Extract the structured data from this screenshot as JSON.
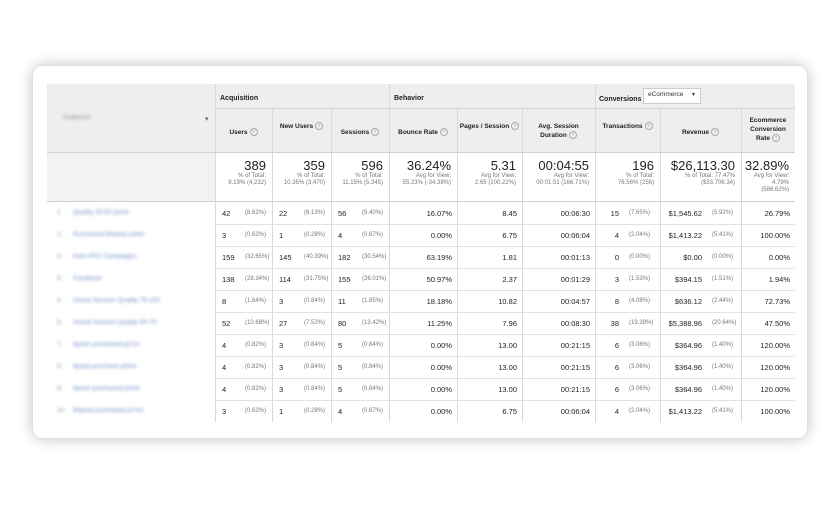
{
  "header": {
    "audience_label": "Audience",
    "groups": {
      "acquisition": "Acquisition",
      "behavior": "Behavior",
      "conversions": "Conversions"
    },
    "conversions_select": "eCommerce",
    "columns": [
      "Users",
      "New Users",
      "Sessions",
      "Bounce Rate",
      "Pages / Session",
      "Avg. Session Duration",
      "Transactions",
      "Revenue",
      "Ecommerce Conversion Rate"
    ]
  },
  "totals": [
    {
      "value": "389",
      "l1": "% of Total:",
      "l2": "9.19% (4,232)"
    },
    {
      "value": "359",
      "l1": "% of Total:",
      "l2": "10.35% (3,470)"
    },
    {
      "value": "596",
      "l1": "% of Total:",
      "l2": "11.15% (5,345)"
    },
    {
      "value": "36.24%",
      "l1": "Avg for View:",
      "l2": "55.23% (-34.38%)"
    },
    {
      "value": "5.31",
      "l1": "Avg for View:",
      "l2": "2.65 (100.22%)"
    },
    {
      "value": "00:04:55",
      "l1": "Avg for View:",
      "l2": "00:01:51 (166.71%)"
    },
    {
      "value": "196",
      "l1": "% of Total:",
      "l2": "76.56% (256)"
    },
    {
      "value": "$26,113.30",
      "l1": "% of Total: 77.47%",
      "l2": "($33,706.34)"
    },
    {
      "value": "32.89%",
      "l1": "Avg for View:",
      "l2": "4.79%",
      "l3": "(586.62%)"
    }
  ],
  "rows": [
    {
      "idx": "1.",
      "name": "Quality 25-50 p3Ad",
      "users": "42",
      "users_p": "(8.62%)",
      "new": "22",
      "new_p": "(6.13%)",
      "sess": "56",
      "sess_p": "(9.40%)",
      "bounce": "16.07%",
      "pps": "8.45",
      "dur": "00:06:30",
      "tx": "15",
      "tx_p": "(7.65%)",
      "rev": "$1,545.62",
      "rev_p": "(5.92%)",
      "conv": "26.79%"
    },
    {
      "idx": "2.",
      "name": "Purchased 60pack p3Ad",
      "users": "3",
      "users_p": "(0.62%)",
      "new": "1",
      "new_p": "(0.28%)",
      "sess": "4",
      "sess_p": "(0.67%)",
      "bounce": "0.00%",
      "pps": "6.75",
      "dur": "00:06:04",
      "tx": "4",
      "tx_p": "(2.04%)",
      "rev": "$1,413.22",
      "rev_p": "(5.41%)",
      "conv": "100.00%"
    },
    {
      "idx": "3.",
      "name": "Keto PPC Campaigns",
      "users": "159",
      "users_p": "(32.65%)",
      "new": "145",
      "new_p": "(40.39%)",
      "sess": "182",
      "sess_p": "(30.54%)",
      "bounce": "63.19%",
      "pps": "1.81",
      "dur": "00:01:13",
      "tx": "0",
      "tx_p": "(0.00%)",
      "rev": "$0.00",
      "rev_p": "(0.00%)",
      "conv": "0.00%"
    },
    {
      "idx": "4.",
      "name": "Facebook",
      "users": "138",
      "users_p": "(28.34%)",
      "new": "114",
      "new_p": "(31.75%)",
      "sess": "155",
      "sess_p": "(26.01%)",
      "bounce": "50.97%",
      "pps": "2.37",
      "dur": "00:01:29",
      "tx": "3",
      "tx_p": "(1.53%)",
      "rev": "$394.15",
      "rev_p": "(1.51%)",
      "conv": "1.94%"
    },
    {
      "idx": "5.",
      "name": "Actual Session Quality 75-100",
      "users": "8",
      "users_p": "(1.64%)",
      "new": "3",
      "new_p": "(0.84%)",
      "sess": "11",
      "sess_p": "(1.85%)",
      "bounce": "18.18%",
      "pps": "10.82",
      "dur": "00:04:57",
      "tx": "8",
      "tx_p": "(4.08%)",
      "rev": "$636.12",
      "rev_p": "(2.44%)",
      "conv": "72.73%"
    },
    {
      "idx": "6.",
      "name": "Actual Session Quality 50-75",
      "users": "52",
      "users_p": "(10.68%)",
      "new": "27",
      "new_p": "(7.52%)",
      "sess": "80",
      "sess_p": "(13.42%)",
      "bounce": "11.25%",
      "pps": "7.96",
      "dur": "00:08:30",
      "tx": "38",
      "tx_p": "(19.39%)",
      "rev": "$5,388.96",
      "rev_p": "(20.64%)",
      "conv": "47.50%"
    },
    {
      "idx": "7.",
      "name": "6pack purchased p27d",
      "users": "4",
      "users_p": "(0.82%)",
      "new": "3",
      "new_p": "(0.84%)",
      "sess": "5",
      "sess_p": "(0.84%)",
      "bounce": "0.00%",
      "pps": "13.00",
      "dur": "00:21:15",
      "tx": "6",
      "tx_p": "(3.06%)",
      "rev": "$364.96",
      "rev_p": "(1.40%)",
      "conv": "120.00%"
    },
    {
      "idx": "8.",
      "name": "6pack purchase p4Ad",
      "users": "4",
      "users_p": "(0.82%)",
      "new": "3",
      "new_p": "(0.84%)",
      "sess": "5",
      "sess_p": "(0.84%)",
      "bounce": "0.00%",
      "pps": "13.00",
      "dur": "00:21:15",
      "tx": "6",
      "tx_p": "(3.06%)",
      "rev": "$364.96",
      "rev_p": "(1.40%)",
      "conv": "120.00%"
    },
    {
      "idx": "9.",
      "name": "6pack purchased p4Ad",
      "users": "4",
      "users_p": "(0.82%)",
      "new": "3",
      "new_p": "(0.84%)",
      "sess": "5",
      "sess_p": "(0.84%)",
      "bounce": "0.00%",
      "pps": "13.00",
      "dur": "00:21:15",
      "tx": "6",
      "tx_p": "(3.06%)",
      "rev": "$364.96",
      "rev_p": "(1.40%)",
      "conv": "120.00%"
    },
    {
      "idx": "10.",
      "name": "60pack purchased p7Ad",
      "users": "3",
      "users_p": "(0.62%)",
      "new": "1",
      "new_p": "(0.28%)",
      "sess": "4",
      "sess_p": "(0.67%)",
      "bounce": "0.00%",
      "pps": "6.75",
      "dur": "00:06:04",
      "tx": "4",
      "tx_p": "(2.04%)",
      "rev": "$1,413.22",
      "rev_p": "(5.41%)",
      "conv": "100.00%"
    }
  ]
}
